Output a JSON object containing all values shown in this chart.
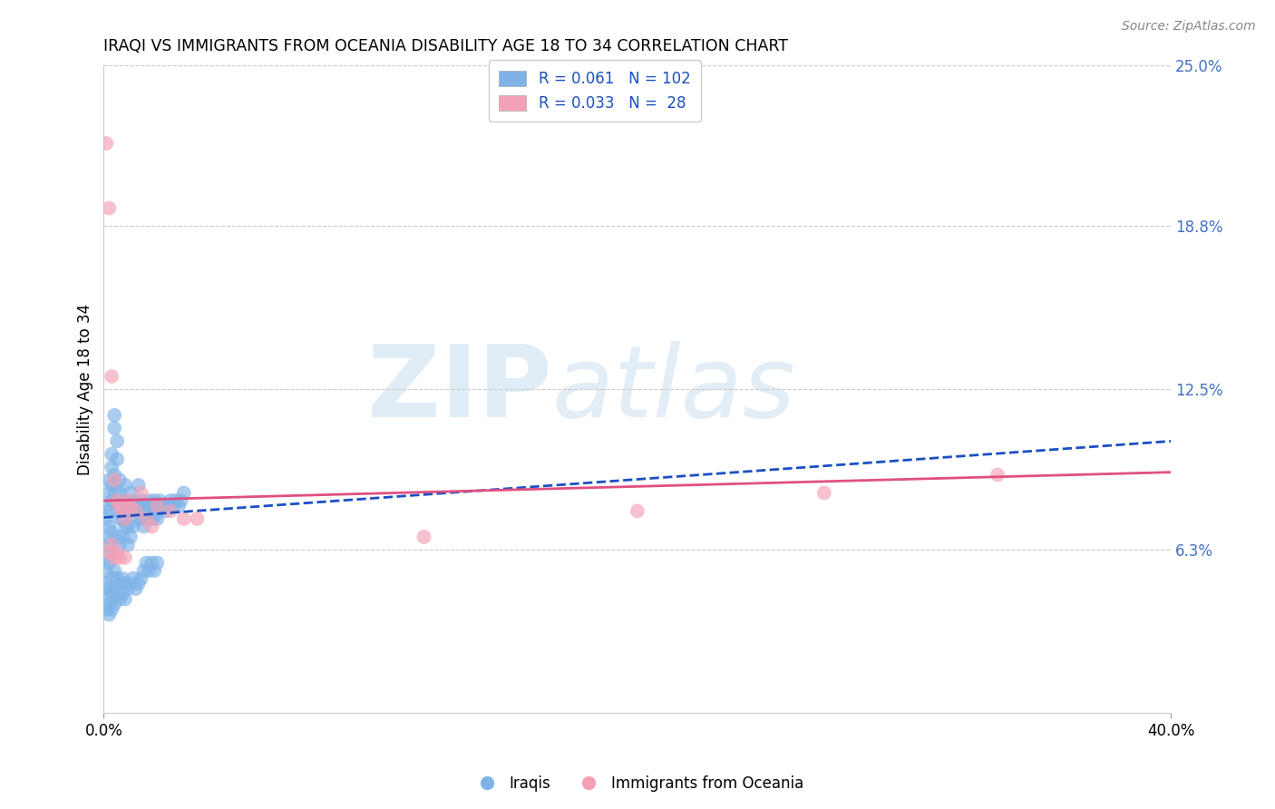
{
  "title": "IRAQI VS IMMIGRANTS FROM OCEANIA DISABILITY AGE 18 TO 34 CORRELATION CHART",
  "source": "Source: ZipAtlas.com",
  "ylabel": "Disability Age 18 to 34",
  "xlabel": "",
  "xlim": [
    0.0,
    0.4
  ],
  "ylim": [
    0.0,
    0.25
  ],
  "ytick_vals": [
    0.063,
    0.125,
    0.188,
    0.25
  ],
  "ytick_labels": [
    "6.3%",
    "12.5%",
    "18.8%",
    "25.0%"
  ],
  "gridline_color": "#cccccc",
  "background_color": "#ffffff",
  "iraqis_color": "#7fb3e8",
  "oceania_color": "#f4a0b5",
  "iraqis_line_color": "#1a4fc4",
  "oceania_line_color": "#e05080",
  "R_iraqis": 0.061,
  "N_iraqis": 102,
  "R_oceania": 0.033,
  "N_oceania": 28,
  "watermark_zip": "ZIP",
  "watermark_atlas": "atlas",
  "legend_label_iraqis": "Iraqis",
  "legend_label_oceania": "Immigrants from Oceania",
  "iraqis_x": [
    0.001,
    0.001,
    0.001,
    0.001,
    0.001,
    0.002,
    0.002,
    0.002,
    0.002,
    0.002,
    0.002,
    0.003,
    0.003,
    0.003,
    0.003,
    0.003,
    0.004,
    0.004,
    0.004,
    0.004,
    0.005,
    0.005,
    0.005,
    0.005,
    0.006,
    0.006,
    0.006,
    0.006,
    0.007,
    0.007,
    0.007,
    0.008,
    0.008,
    0.008,
    0.009,
    0.009,
    0.009,
    0.01,
    0.01,
    0.01,
    0.011,
    0.011,
    0.012,
    0.012,
    0.013,
    0.013,
    0.014,
    0.014,
    0.015,
    0.015,
    0.016,
    0.016,
    0.017,
    0.017,
    0.018,
    0.018,
    0.019,
    0.019,
    0.02,
    0.02,
    0.021,
    0.022,
    0.023,
    0.024,
    0.025,
    0.026,
    0.027,
    0.028,
    0.029,
    0.03,
    0.001,
    0.001,
    0.001,
    0.002,
    0.002,
    0.002,
    0.003,
    0.003,
    0.003,
    0.004,
    0.004,
    0.004,
    0.005,
    0.005,
    0.006,
    0.006,
    0.007,
    0.007,
    0.008,
    0.008,
    0.009,
    0.01,
    0.011,
    0.012,
    0.013,
    0.014,
    0.015,
    0.016,
    0.017,
    0.018,
    0.019,
    0.02
  ],
  "iraqis_y": [
    0.08,
    0.075,
    0.068,
    0.06,
    0.055,
    0.09,
    0.085,
    0.078,
    0.072,
    0.065,
    0.058,
    0.095,
    0.1,
    0.088,
    0.082,
    0.07,
    0.115,
    0.11,
    0.092,
    0.085,
    0.105,
    0.098,
    0.078,
    0.068,
    0.09,
    0.085,
    0.075,
    0.065,
    0.082,
    0.075,
    0.068,
    0.088,
    0.082,
    0.072,
    0.078,
    0.072,
    0.065,
    0.085,
    0.078,
    0.068,
    0.08,
    0.072,
    0.082,
    0.075,
    0.088,
    0.08,
    0.082,
    0.075,
    0.078,
    0.072,
    0.08,
    0.075,
    0.082,
    0.076,
    0.08,
    0.075,
    0.082,
    0.076,
    0.08,
    0.075,
    0.082,
    0.08,
    0.078,
    0.08,
    0.082,
    0.08,
    0.082,
    0.08,
    0.082,
    0.085,
    0.05,
    0.045,
    0.04,
    0.048,
    0.042,
    0.038,
    0.052,
    0.046,
    0.04,
    0.055,
    0.048,
    0.042,
    0.052,
    0.045,
    0.05,
    0.044,
    0.052,
    0.046,
    0.05,
    0.044,
    0.048,
    0.05,
    0.052,
    0.048,
    0.05,
    0.052,
    0.055,
    0.058,
    0.055,
    0.058,
    0.055,
    0.058
  ],
  "oceania_x": [
    0.001,
    0.002,
    0.003,
    0.004,
    0.005,
    0.006,
    0.007,
    0.008,
    0.009,
    0.01,
    0.012,
    0.014,
    0.016,
    0.018,
    0.02,
    0.025,
    0.03,
    0.035,
    0.12,
    0.2,
    0.27,
    0.335,
    0.002,
    0.003,
    0.004,
    0.005,
    0.006,
    0.008
  ],
  "oceania_y": [
    0.22,
    0.195,
    0.13,
    0.09,
    0.082,
    0.08,
    0.078,
    0.075,
    0.082,
    0.08,
    0.078,
    0.085,
    0.075,
    0.072,
    0.08,
    0.078,
    0.075,
    0.075,
    0.068,
    0.078,
    0.085,
    0.092,
    0.062,
    0.065,
    0.06,
    0.062,
    0.06,
    0.06
  ],
  "trend_iraqis_x0": 0.0,
  "trend_iraqis_y0": 0.0755,
  "trend_iraqis_x1": 0.4,
  "trend_iraqis_y1": 0.105,
  "trend_oceania_x0": 0.0,
  "trend_oceania_y0": 0.082,
  "trend_oceania_x1": 0.4,
  "trend_oceania_y1": 0.093
}
